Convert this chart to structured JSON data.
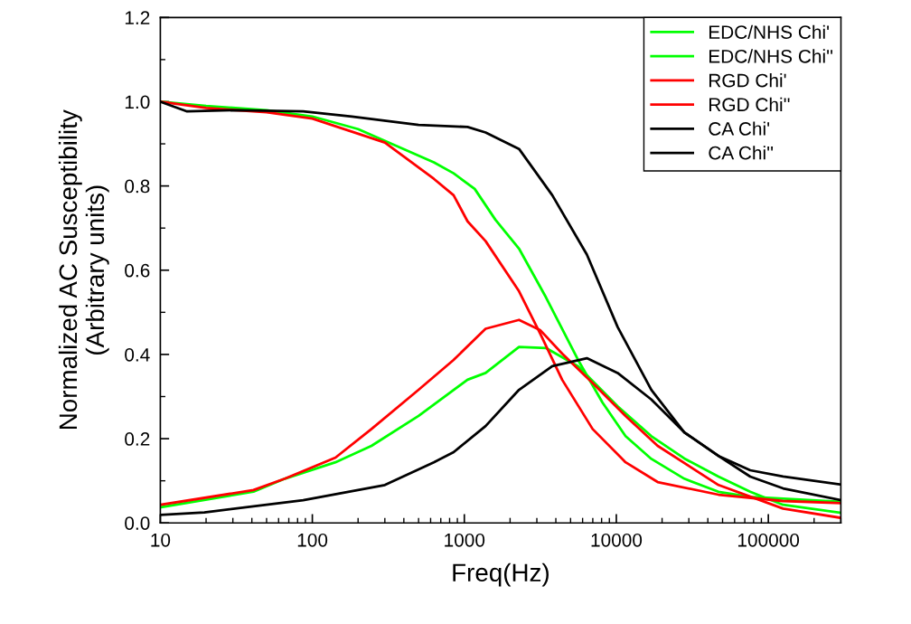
{
  "chart_data": {
    "type": "line",
    "xlabel": "Freq(Hz)",
    "ylabel": "Normalized AC Susceptibility\n(Arbitrary units)",
    "log": "x",
    "grid": false,
    "legend": "top right",
    "line_style": "solid",
    "marker": "none",
    "xlim": [
      10,
      300000
    ],
    "xticks": [
      10,
      100,
      1000,
      10000,
      100000
    ],
    "ylim": [
      0,
      1.2
    ],
    "yticks": [
      {
        "value": 0,
        "label": "0.0"
      },
      {
        "value": 0.2,
        "label": "0.2"
      },
      {
        "value": 0.4,
        "label": "0.4"
      },
      {
        "value": 0.6,
        "label": "0.6"
      },
      {
        "value": 0.8,
        "label": "0.8"
      },
      {
        "value": 1.0,
        "label": "1.0"
      },
      {
        "value": 1.2,
        "label": "1.2"
      }
    ],
    "series": [
      {
        "name": "EDC/NHS Chi'",
        "color": "#00ff00",
        "x": [
          10,
          20,
          50,
          100,
          200,
          630,
          850,
          1170,
          1600,
          2300,
          3450,
          5600,
          8100,
          11500,
          17000,
          28000,
          47000,
          76000,
          300000
        ],
        "values": [
          1.0,
          0.99,
          0.98,
          0.965,
          0.935,
          0.856,
          0.83,
          0.793,
          0.72,
          0.65,
          0.535,
          0.387,
          0.286,
          0.206,
          0.152,
          0.105,
          0.074,
          0.062,
          0.05
        ]
      },
      {
        "name": "EDC/NHS Chi''",
        "color": "#00ff00",
        "x": [
          10,
          41,
          66,
          142,
          245,
          500,
          1050,
          1380,
          2290,
          3460,
          5600,
          10200,
          17000,
          28000,
          47000,
          76000,
          125000,
          300000
        ],
        "values": [
          0.037,
          0.074,
          0.105,
          0.144,
          0.183,
          0.254,
          0.34,
          0.356,
          0.418,
          0.415,
          0.372,
          0.277,
          0.206,
          0.153,
          0.11,
          0.074,
          0.043,
          0.024
        ]
      },
      {
        "name": "RGD Chi'",
        "color": "#ff0000",
        "x": [
          10,
          20,
          50,
          100,
          300,
          630,
          850,
          1050,
          1380,
          2290,
          3150,
          4400,
          6980,
          11500,
          18700,
          47000,
          125000,
          300000
        ],
        "values": [
          1.0,
          0.985,
          0.975,
          0.96,
          0.903,
          0.817,
          0.778,
          0.716,
          0.669,
          0.55,
          0.45,
          0.34,
          0.223,
          0.144,
          0.097,
          0.067,
          0.052,
          0.047
        ]
      },
      {
        "name": "RGD Chi''",
        "color": "#ff0000",
        "x": [
          10,
          41,
          66,
          142,
          245,
          500,
          850,
          1380,
          2290,
          3150,
          4400,
          6980,
          11500,
          18700,
          47000,
          125000,
          300000
        ],
        "values": [
          0.043,
          0.078,
          0.105,
          0.155,
          0.223,
          0.316,
          0.387,
          0.461,
          0.482,
          0.458,
          0.402,
          0.332,
          0.254,
          0.183,
          0.09,
          0.034,
          0.012
        ]
      },
      {
        "name": "CA Chi'",
        "color": "#000000",
        "x": [
          10,
          15,
          32,
          87,
          182,
          500,
          1050,
          1380,
          2290,
          3790,
          6400,
          10200,
          17000,
          28000,
          47000,
          76000,
          125000,
          300000
        ],
        "values": [
          1.0,
          0.977,
          0.98,
          0.977,
          0.965,
          0.945,
          0.94,
          0.927,
          0.888,
          0.778,
          0.637,
          0.465,
          0.316,
          0.215,
          0.159,
          0.125,
          0.11,
          0.091
        ]
      },
      {
        "name": "CA Chi''",
        "color": "#000000",
        "x": [
          10,
          19.5,
          87,
          300,
          630,
          850,
          1380,
          2290,
          3790,
          6400,
          10200,
          17000,
          28000,
          47000,
          76000,
          125000,
          300000
        ],
        "values": [
          0.019,
          0.025,
          0.054,
          0.09,
          0.144,
          0.168,
          0.23,
          0.316,
          0.372,
          0.391,
          0.356,
          0.293,
          0.215,
          0.159,
          0.11,
          0.082,
          0.054
        ]
      }
    ]
  }
}
